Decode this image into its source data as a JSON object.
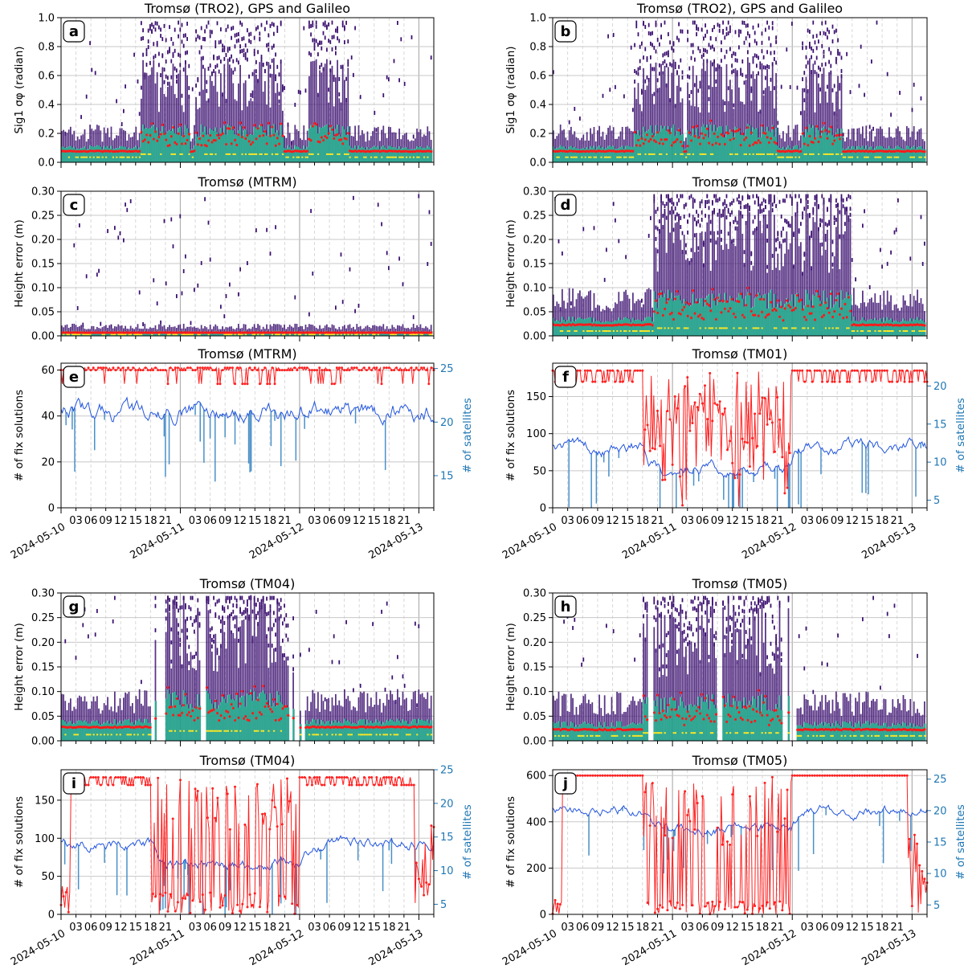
{
  "figure": {
    "background": "#ffffff"
  },
  "colors": {
    "median": "#ff1a1a",
    "fix_line": "#ff2020",
    "sat_line": "#2255dd",
    "sat_bar": "#4a90c8",
    "density_low": "#3b0f70",
    "density_mid": "#1f9e89",
    "density_high": "#fde725",
    "grid": "#c8c8c8"
  },
  "x_axis": {
    "type": "datetime",
    "start": "2024-05-10 00:00",
    "end": "2024-05-13 03:00",
    "hour_labels": [
      "03",
      "06",
      "09",
      "12",
      "15",
      "18",
      "21"
    ],
    "date_labels": [
      "2024-05-10",
      "2024-05-11",
      "2024-05-12",
      "2024-05-13"
    ]
  },
  "chart_data": [
    {
      "id": "a",
      "type": "heatmap",
      "panel_label": "a",
      "title": "Tromsø (TRO2), GPS and Galileo",
      "ylabel": "Sig1 σφ (radian)",
      "ylim": [
        0,
        1.0
      ],
      "yticks": [
        "0.0",
        "0.2",
        "0.4",
        "0.6",
        "0.8",
        "1.0"
      ],
      "disturbed_hours": [
        [
          16,
          26
        ],
        [
          27,
          45
        ],
        [
          50,
          58
        ]
      ],
      "baseline": 0.07,
      "spread": 0.12
    },
    {
      "id": "b",
      "type": "heatmap",
      "panel_label": "b",
      "title": "Tromsø (TRO2), GPS and Galileo",
      "ylabel": "Sig1 σφ (radian)",
      "ylim": [
        0,
        1.0
      ],
      "yticks": [
        "0.0",
        "0.2",
        "0.4",
        "0.6",
        "0.8",
        "1.0"
      ],
      "disturbed_hours": [
        [
          16,
          26
        ],
        [
          27,
          45
        ],
        [
          50,
          58
        ]
      ],
      "baseline": 0.07,
      "spread": 0.12
    },
    {
      "id": "c",
      "type": "heatmap",
      "panel_label": "c",
      "title": "Tromsø (MTRM)",
      "ylabel": "Height error (m)",
      "ylim": [
        0,
        0.3
      ],
      "yticks": [
        "0.00",
        "0.05",
        "0.10",
        "0.15",
        "0.20",
        "0.25",
        "0.30"
      ],
      "disturbed_hours": [],
      "baseline": 0.006,
      "spread": 0.012
    },
    {
      "id": "d",
      "type": "heatmap",
      "panel_label": "d",
      "title": "Tromsø (TM01)",
      "ylabel": "Height error (m)",
      "ylim": [
        0,
        0.3
      ],
      "yticks": [
        "0.00",
        "0.05",
        "0.10",
        "0.15",
        "0.20",
        "0.25",
        "0.30"
      ],
      "disturbed_hours": [
        [
          20,
          60
        ]
      ],
      "baseline": 0.02,
      "spread": 0.05
    },
    {
      "id": "e",
      "type": "line",
      "panel_label": "e",
      "title": "Tromsø (MTRM)",
      "ylabel": "# of fix solutions",
      "y2label": "# of satellites",
      "ylim": [
        0,
        63
      ],
      "yticks": [
        "0",
        "20",
        "40",
        "60"
      ],
      "y2lim": [
        12,
        25.5
      ],
      "y2ticks": [
        "15",
        "20",
        "25"
      ],
      "fix_mode": "mtrm",
      "sat_base": 21,
      "sat_amp": 2
    },
    {
      "id": "f",
      "type": "line",
      "panel_label": "f",
      "title": "Tromsø (TM01)",
      "ylabel": "# of fix solutions",
      "y2label": "# of satellites",
      "ylim": [
        0,
        195
      ],
      "yticks": [
        "0",
        "50",
        "100",
        "150"
      ],
      "y2lim": [
        4,
        23
      ],
      "y2ticks": [
        "5",
        "10",
        "15",
        "20"
      ],
      "fix_mode": "tm01",
      "sat_base": 12,
      "sat_amp": 3
    },
    {
      "id": "g",
      "type": "heatmap",
      "panel_label": "g",
      "title": "Tromsø (TM04)",
      "ylabel": "Height error (m)",
      "ylim": [
        0,
        0.3
      ],
      "yticks": [
        "0.00",
        "0.05",
        "0.10",
        "0.15",
        "0.20",
        "0.25",
        "0.30"
      ],
      "disturbed_hours": [
        [
          18,
          48
        ]
      ],
      "baseline": 0.025,
      "spread": 0.05,
      "gaps": [
        [
          18,
          21
        ],
        [
          28,
          29
        ],
        [
          46,
          49
        ]
      ]
    },
    {
      "id": "h",
      "type": "heatmap",
      "panel_label": "h",
      "title": "Tromsø (TM05)",
      "ylabel": "Height error (m)",
      "ylim": [
        0,
        0.3
      ],
      "yticks": [
        "0.00",
        "0.05",
        "0.10",
        "0.15",
        "0.20",
        "0.25",
        "0.30"
      ],
      "disturbed_hours": [
        [
          18,
          48
        ]
      ],
      "baseline": 0.02,
      "spread": 0.05,
      "gaps": [
        [
          19,
          20
        ],
        [
          33,
          34
        ],
        [
          46,
          49
        ]
      ]
    },
    {
      "id": "i",
      "type": "line",
      "panel_label": "i",
      "title": "Tromsø (TM04)",
      "ylabel": "# of fix solutions",
      "y2label": "# of satellites",
      "ylim": [
        0,
        190
      ],
      "yticks": [
        "0",
        "50",
        "100",
        "150"
      ],
      "y2lim": [
        3.5,
        25
      ],
      "y2ticks": [
        "5",
        "10",
        "15",
        "20",
        "25"
      ],
      "fix_mode": "tm04",
      "sat_base": 14,
      "sat_amp": 3
    },
    {
      "id": "j",
      "type": "line",
      "panel_label": "j",
      "title": "Tromsø (TM05)",
      "ylabel": "# of fix solutions",
      "y2label": "# of satellites",
      "ylim": [
        0,
        625
      ],
      "yticks": [
        "0",
        "200",
        "400",
        "600"
      ],
      "y2lim": [
        3.5,
        26.5
      ],
      "y2ticks": [
        "5",
        "10",
        "15",
        "20",
        "25"
      ],
      "fix_mode": "tm05",
      "sat_base": 20,
      "sat_amp": 3
    }
  ]
}
